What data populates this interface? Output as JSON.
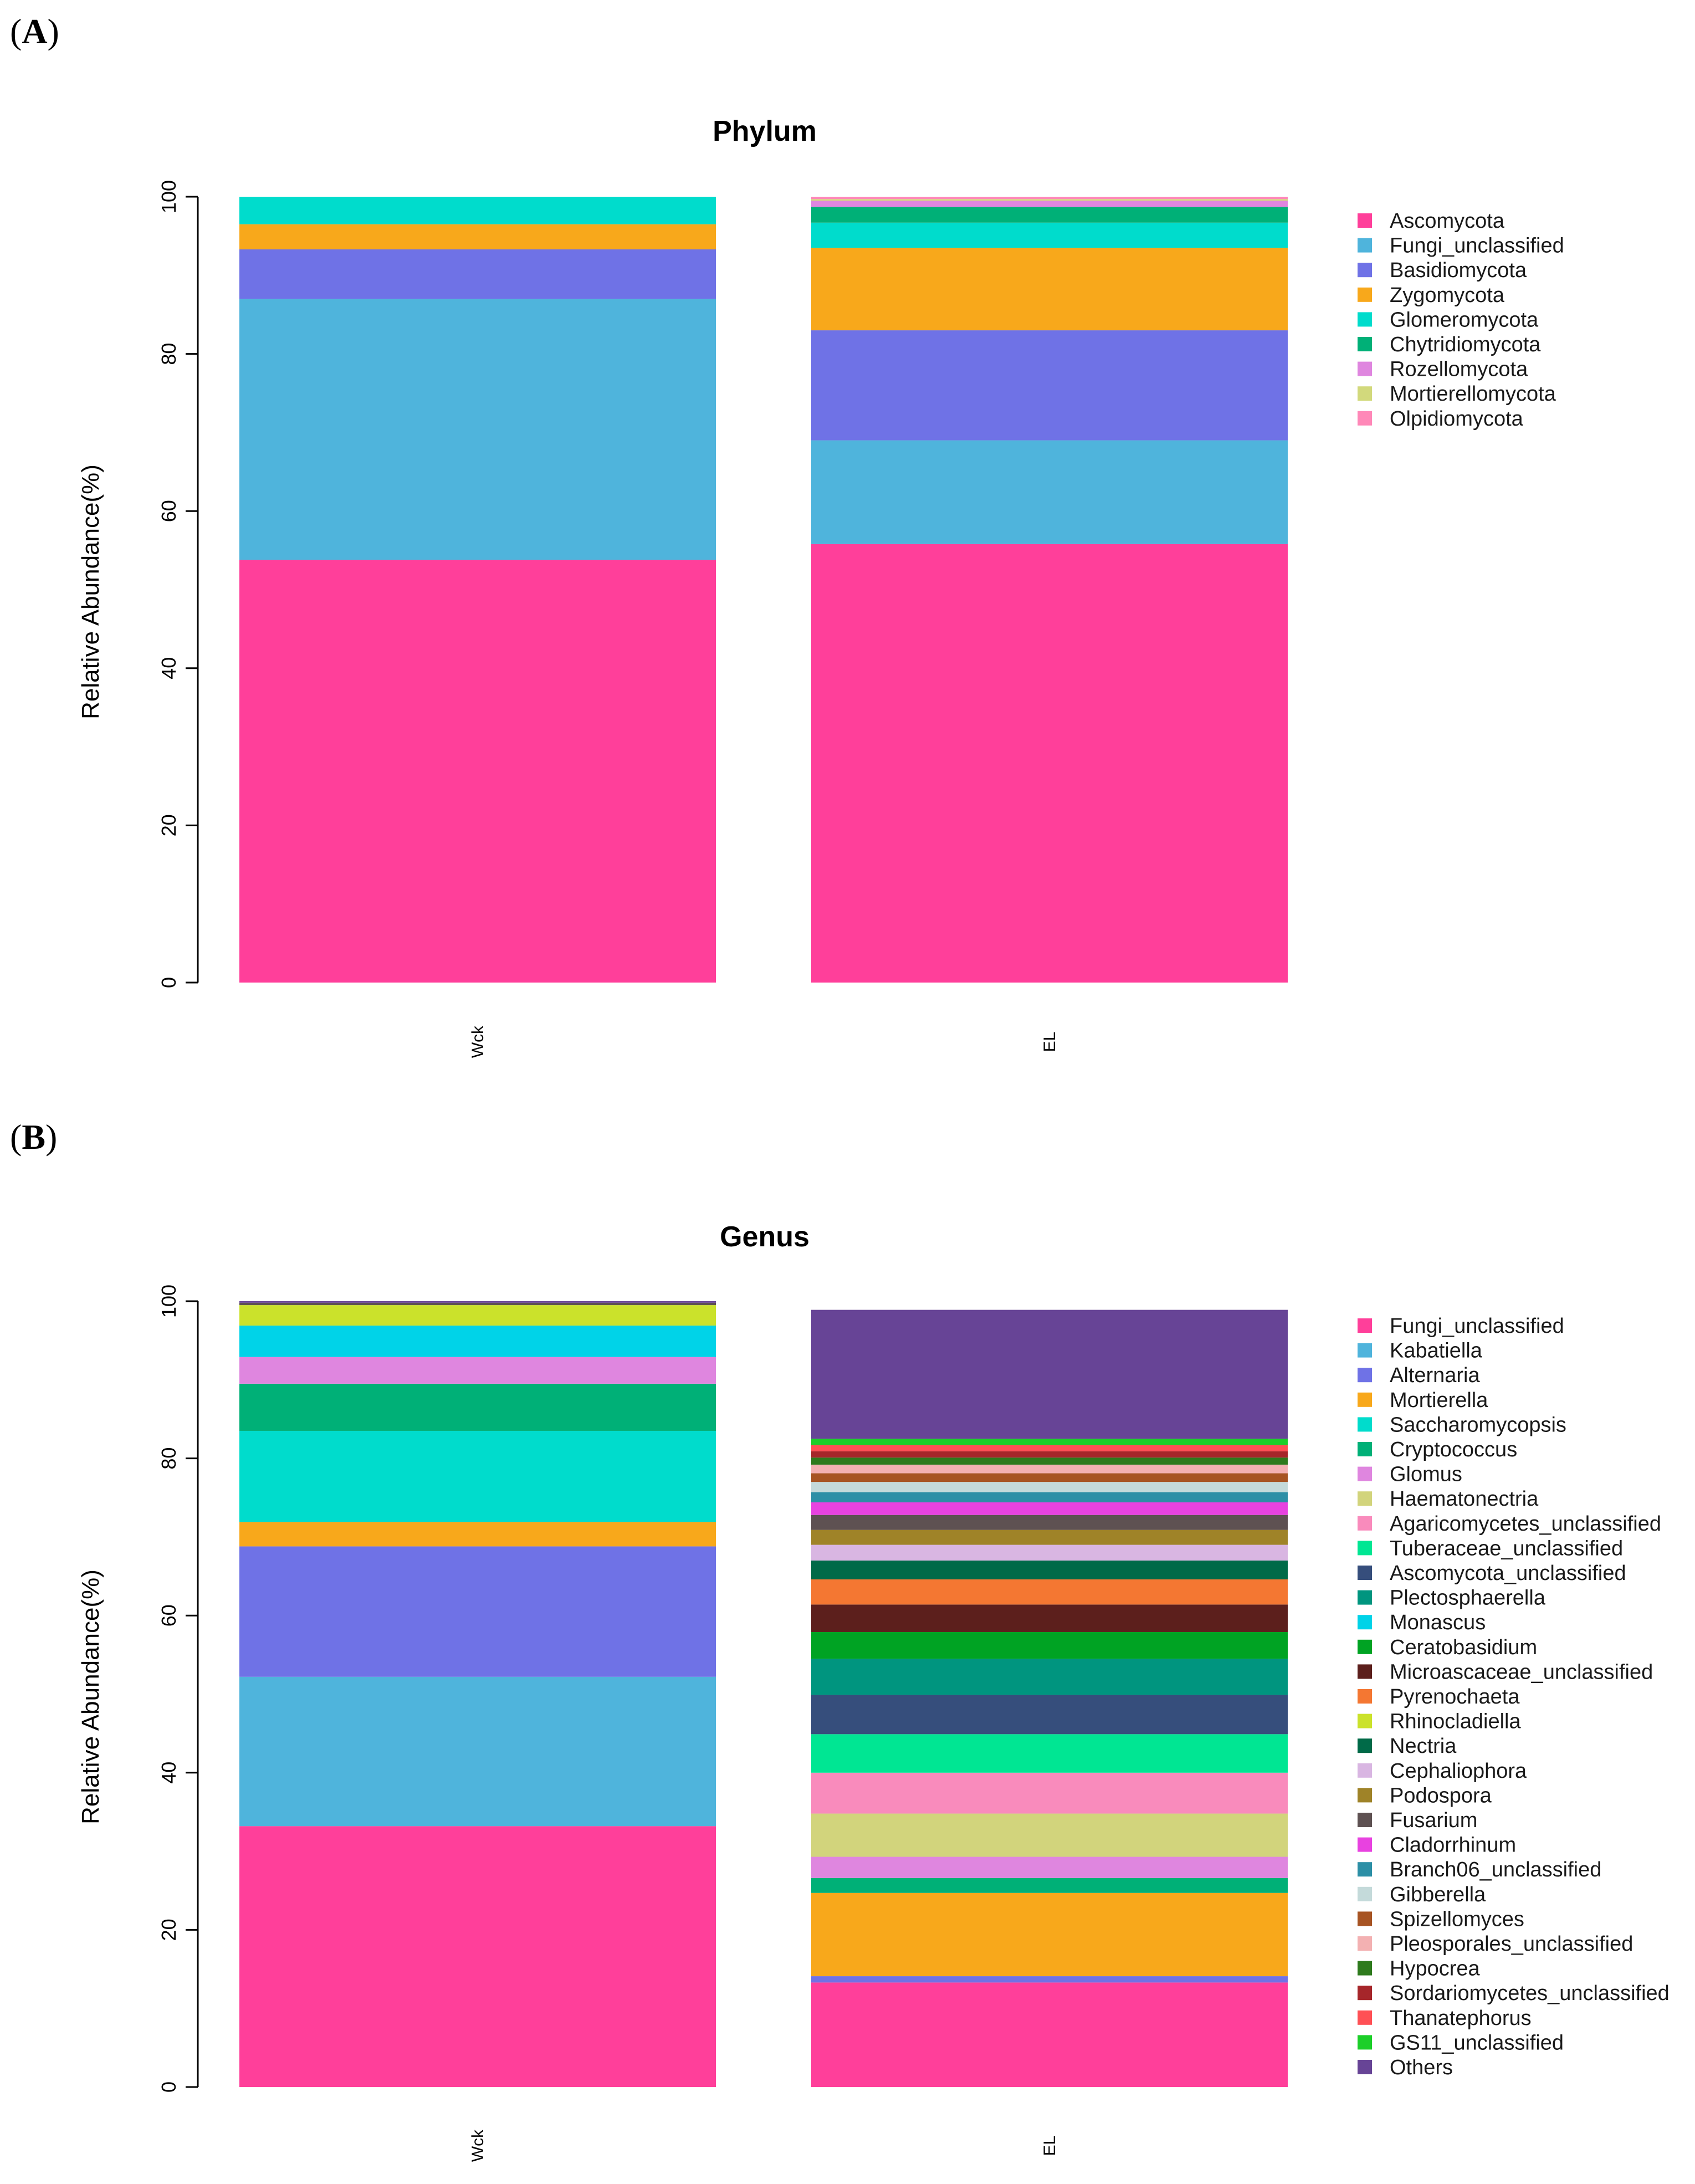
{
  "figure": {
    "panels": [
      {
        "open": "(",
        "letter": "A",
        "close": ")"
      },
      {
        "open": "(",
        "letter": "B",
        "close": ")"
      }
    ]
  },
  "chart_data": [
    {
      "type": "bar",
      "stacked": true,
      "title": "Phylum",
      "xlabel": "",
      "ylabel": "Relative Abundance(%)",
      "ylim": [
        0,
        100
      ],
      "yticks": [
        0,
        20,
        40,
        60,
        80,
        100
      ],
      "categories": [
        "Wck",
        "EL"
      ],
      "legend_position": "right",
      "series": [
        {
          "name": "Ascomycota",
          "color": "#ff3f9a",
          "values": [
            53.8,
            55.8
          ]
        },
        {
          "name": "Fungi_unclassified",
          "color": "#4fb4dc",
          "values": [
            33.2,
            13.2
          ]
        },
        {
          "name": "Basidiomycota",
          "color": "#6f72e6",
          "values": [
            6.3,
            14.0
          ]
        },
        {
          "name": "Zygomycota",
          "color": "#f8a81b",
          "values": [
            3.2,
            10.5
          ]
        },
        {
          "name": "Glomeromycota",
          "color": "#00dccc",
          "values": [
            3.5,
            3.2
          ]
        },
        {
          "name": "Chytridiomycota",
          "color": "#00b077",
          "values": [
            0.0,
            2.0
          ]
        },
        {
          "name": "Rozellomycota",
          "color": "#df86df",
          "values": [
            0.0,
            0.8
          ]
        },
        {
          "name": "Mortierellomycota",
          "color": "#d2d97c",
          "values": [
            0.0,
            0.2
          ]
        },
        {
          "name": "Olpidiomycota",
          "color": "#ff88b8",
          "values": [
            0.0,
            0.3
          ]
        }
      ]
    },
    {
      "type": "bar",
      "stacked": true,
      "title": "Genus",
      "xlabel": "",
      "ylabel": "Relative Abundance(%)",
      "ylim": [
        0,
        100
      ],
      "yticks": [
        0,
        20,
        40,
        60,
        80,
        100
      ],
      "categories": [
        "Wck",
        "EL"
      ],
      "legend_position": "right",
      "series": [
        {
          "name": "Fungi_unclassified",
          "color": "#ff3f9a",
          "values": [
            33.2,
            13.3
          ]
        },
        {
          "name": "Kabatiella",
          "color": "#4fb4dc",
          "values": [
            19.0,
            0.0
          ]
        },
        {
          "name": "Alternaria",
          "color": "#6f72e6",
          "values": [
            16.6,
            0.8
          ]
        },
        {
          "name": "Mortierella",
          "color": "#f8a81b",
          "values": [
            3.1,
            10.6
          ]
        },
        {
          "name": "Saccharomycopsis",
          "color": "#00dccc",
          "values": [
            11.6,
            0.0
          ]
        },
        {
          "name": "Cryptococcus",
          "color": "#00b077",
          "values": [
            6.0,
            1.9
          ]
        },
        {
          "name": "Glomus",
          "color": "#df86df",
          "values": [
            3.4,
            2.7
          ]
        },
        {
          "name": "Haematonectria",
          "color": "#d2d47c",
          "values": [
            0.0,
            5.5
          ]
        },
        {
          "name": "Agaricomycetes_unclassified",
          "color": "#f98bbc",
          "values": [
            0.0,
            5.2
          ]
        },
        {
          "name": "Tuberaceae_unclassified",
          "color": "#00e693",
          "values": [
            0.0,
            4.9
          ]
        },
        {
          "name": "Ascomycota_unclassified",
          "color": "#364e7c",
          "values": [
            0.0,
            5.0
          ]
        },
        {
          "name": "Plectosphaerella",
          "color": "#00957f",
          "values": [
            0.0,
            4.6
          ]
        },
        {
          "name": "Monascus",
          "color": "#00d3e8",
          "values": [
            4.0,
            0.0
          ]
        },
        {
          "name": "Ceratobasidium",
          "color": "#00a323",
          "values": [
            0.0,
            3.4
          ]
        },
        {
          "name": "Microascaceae_unclassified",
          "color": "#5c1f1c",
          "values": [
            0.0,
            3.5
          ]
        },
        {
          "name": "Pyrenochaeta",
          "color": "#f47732",
          "values": [
            0.0,
            3.2
          ]
        },
        {
          "name": "Rhinocladiella",
          "color": "#cbe22b",
          "values": [
            2.6,
            0.0
          ]
        },
        {
          "name": "Nectria",
          "color": "#006a48",
          "values": [
            0.0,
            2.4
          ]
        },
        {
          "name": "Cephaliophora",
          "color": "#d9b6e2",
          "values": [
            0.0,
            2.0
          ]
        },
        {
          "name": "Podospora",
          "color": "#9f8328",
          "values": [
            0.0,
            1.9
          ]
        },
        {
          "name": "Fusarium",
          "color": "#5e5152",
          "values": [
            0.3,
            1.9
          ]
        },
        {
          "name": "Cladorrhinum",
          "color": "#e842e0",
          "values": [
            0.0,
            1.6
          ]
        },
        {
          "name": "Branch06_unclassified",
          "color": "#2c8fa6",
          "values": [
            0.0,
            1.3
          ]
        },
        {
          "name": "Gibberella",
          "color": "#c4dada",
          "values": [
            0.0,
            1.3
          ]
        },
        {
          "name": "Spizellomyces",
          "color": "#a75423",
          "values": [
            0.0,
            1.1
          ]
        },
        {
          "name": "Pleosporales_unclassified",
          "color": "#f3b1b2",
          "values": [
            0.0,
            1.1
          ]
        },
        {
          "name": "Hypocrea",
          "color": "#2e7a1d",
          "values": [
            0.0,
            0.9
          ]
        },
        {
          "name": "Sordariomycetes_unclassified",
          "color": "#a6262a",
          "values": [
            0.0,
            0.8
          ]
        },
        {
          "name": "Thanatephorus",
          "color": "#ff5055",
          "values": [
            0.0,
            0.8
          ]
        },
        {
          "name": "GS11_unclassified",
          "color": "#1ccf29",
          "values": [
            0.0,
            0.8
          ]
        },
        {
          "name": "Others",
          "color": "#674496",
          "values": [
            0.2,
            16.4
          ]
        }
      ]
    }
  ]
}
